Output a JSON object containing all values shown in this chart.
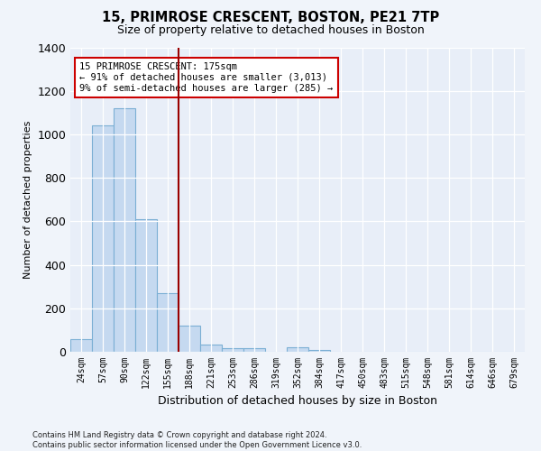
{
  "title_line1": "15, PRIMROSE CRESCENT, BOSTON, PE21 7TP",
  "title_line2": "Size of property relative to detached houses in Boston",
  "xlabel": "Distribution of detached houses by size in Boston",
  "ylabel": "Number of detached properties",
  "categories": [
    "24sqm",
    "57sqm",
    "90sqm",
    "122sqm",
    "155sqm",
    "188sqm",
    "221sqm",
    "253sqm",
    "286sqm",
    "319sqm",
    "352sqm",
    "384sqm",
    "417sqm",
    "450sqm",
    "483sqm",
    "515sqm",
    "548sqm",
    "581sqm",
    "614sqm",
    "646sqm",
    "679sqm"
  ],
  "values": [
    60,
    1040,
    1120,
    610,
    270,
    120,
    35,
    18,
    18,
    0,
    20,
    10,
    0,
    0,
    0,
    0,
    0,
    0,
    0,
    0,
    0
  ],
  "bar_color": "#c5d9f0",
  "bar_edge_color": "#7bafd4",
  "vline_color": "#990000",
  "annotation_text": "15 PRIMROSE CRESCENT: 175sqm\n← 91% of detached houses are smaller (3,013)\n9% of semi-detached houses are larger (285) →",
  "annotation_box_color": "#ffffff",
  "annotation_box_edge_color": "#cc0000",
  "ylim": [
    0,
    1400
  ],
  "yticks": [
    0,
    200,
    400,
    600,
    800,
    1000,
    1200,
    1400
  ],
  "footnote": "Contains HM Land Registry data © Crown copyright and database right 2024.\nContains public sector information licensed under the Open Government Licence v3.0.",
  "bg_color": "#f0f4fa",
  "plot_bg_color": "#e8eef8",
  "vline_pos": 4.5
}
